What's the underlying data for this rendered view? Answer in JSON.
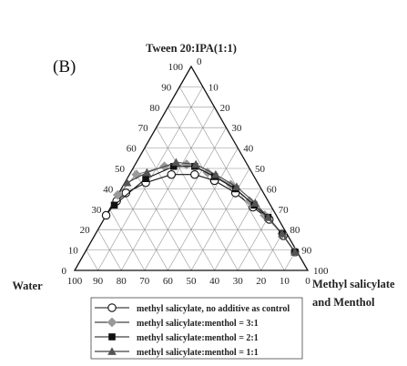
{
  "chart_data": {
    "type": "scatter",
    "subtype": "ternary",
    "panel_label": "(B)",
    "axes": {
      "top": "Tween 20:IPA(1:1)",
      "left": "Water",
      "right_line1": "Methyl salicylate",
      "right_line2": "and Menthol"
    },
    "ticks": {
      "right_edge": [
        "0",
        "10",
        "20",
        "30",
        "40",
        "50",
        "60",
        "70",
        "80",
        "90",
        "100"
      ],
      "left_edge": [
        "0",
        "10",
        "20",
        "30",
        "40",
        "50",
        "60",
        "70",
        "80",
        "90",
        "100"
      ],
      "bottom_edge": [
        "100",
        "90",
        "80",
        "70",
        "60",
        "50",
        "40",
        "30",
        "20",
        "10",
        "0"
      ]
    },
    "grid": true,
    "legend_position": "bottom",
    "series": [
      {
        "name": "methyl salicylate, no additive as control",
        "marker": "circle-open",
        "color": "#000000",
        "points": [
          {
            "water": 73,
            "surfactant": 27,
            "oil": 0
          },
          {
            "water": 65,
            "surfactant": 34,
            "oil": 1
          },
          {
            "water": 59,
            "surfactant": 38,
            "oil": 3
          },
          {
            "water": 48,
            "surfactant": 43,
            "oil": 9
          },
          {
            "water": 35,
            "surfactant": 47,
            "oil": 18
          },
          {
            "water": 25,
            "surfactant": 47,
            "oil": 28
          },
          {
            "water": 18,
            "surfactant": 44,
            "oil": 38
          },
          {
            "water": 12,
            "surfactant": 38,
            "oil": 50
          },
          {
            "water": 8,
            "surfactant": 31,
            "oil": 61
          },
          {
            "water": 4,
            "surfactant": 25,
            "oil": 71
          },
          {
            "water": 2,
            "surfactant": 17,
            "oil": 81
          },
          {
            "water": 1,
            "surfactant": 9,
            "oil": 90
          }
        ]
      },
      {
        "name": "methyl salicylate:menthol = 3:1",
        "marker": "diamond",
        "color": "#999999",
        "points": [
          {
            "water": 63,
            "surfactant": 37,
            "oil": 0
          },
          {
            "water": 50,
            "surfactant": 47,
            "oil": 3
          },
          {
            "water": 36,
            "surfactant": 51,
            "oil": 13
          },
          {
            "water": 26,
            "surfactant": 52,
            "oil": 22
          },
          {
            "water": 19,
            "surfactant": 48,
            "oil": 33
          },
          {
            "water": 12,
            "surfactant": 42,
            "oil": 46
          },
          {
            "water": 8,
            "surfactant": 34,
            "oil": 58
          },
          {
            "water": 5,
            "surfactant": 27,
            "oil": 68
          },
          {
            "water": 2,
            "surfactant": 18,
            "oil": 80
          },
          {
            "water": 1,
            "surfactant": 9,
            "oil": 90
          }
        ]
      },
      {
        "name": "methyl salicylate:menthol = 2:1",
        "marker": "square",
        "color": "#111111",
        "points": [
          {
            "water": 67,
            "surfactant": 32,
            "oil": 1
          },
          {
            "water": 47,
            "surfactant": 45,
            "oil": 8
          },
          {
            "water": 32,
            "surfactant": 51,
            "oil": 17
          },
          {
            "water": 23,
            "surfactant": 51,
            "oil": 26
          },
          {
            "water": 17,
            "surfactant": 46,
            "oil": 37
          },
          {
            "water": 11,
            "surfactant": 40,
            "oil": 49
          },
          {
            "water": 7,
            "surfactant": 32,
            "oil": 61
          },
          {
            "water": 4,
            "surfactant": 26,
            "oil": 70
          },
          {
            "water": 2,
            "surfactant": 18,
            "oil": 80
          },
          {
            "water": 1,
            "surfactant": 9,
            "oil": 90
          }
        ]
      },
      {
        "name": "methyl salicylate:menthol = 1:1",
        "marker": "triangle",
        "color": "#555555",
        "points": [
          {
            "water": 56,
            "surfactant": 43,
            "oil": 1
          },
          {
            "water": 45,
            "surfactant": 48,
            "oil": 7
          },
          {
            "water": 30,
            "surfactant": 53,
            "oil": 17
          },
          {
            "water": 22,
            "surfactant": 52,
            "oil": 26
          },
          {
            "water": 16,
            "surfactant": 47,
            "oil": 37
          },
          {
            "water": 10,
            "surfactant": 41,
            "oil": 49
          },
          {
            "water": 6,
            "surfactant": 33,
            "oil": 61
          },
          {
            "water": 4,
            "surfactant": 26,
            "oil": 70
          },
          {
            "water": 2,
            "surfactant": 18,
            "oil": 80
          },
          {
            "water": 1,
            "surfactant": 9,
            "oil": 90
          }
        ]
      }
    ]
  }
}
